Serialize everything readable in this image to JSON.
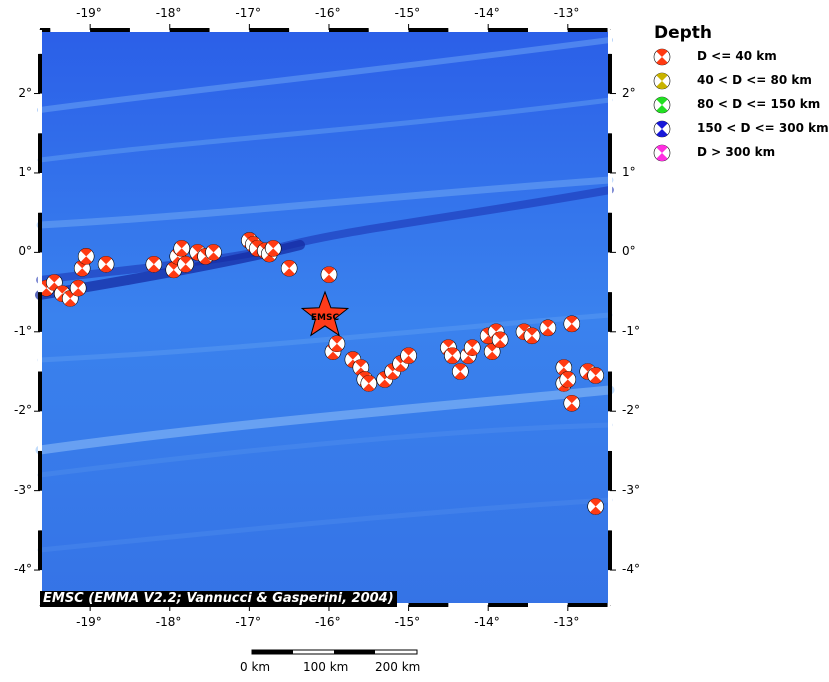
{
  "map": {
    "lon_ticks": [
      "-19°",
      "-18°",
      "-17°",
      "-16°",
      "-15°",
      "-14°",
      "-13°"
    ],
    "lon_values": [
      -19,
      -18,
      -17,
      -16,
      -15,
      -14,
      -13
    ],
    "lat_ticks": [
      "2°",
      "1°",
      "0°",
      "-1°",
      "-2°",
      "-3°",
      "-4°"
    ],
    "lat_values": [
      2,
      1,
      0,
      -1,
      -2,
      -3,
      -4
    ],
    "extent": {
      "lon": [
        -19.63,
        -12.47
      ],
      "lat": [
        -4.44,
        2.8
      ]
    },
    "epicenter": {
      "label": "EMSC",
      "lon": -16.05,
      "lat": -0.8,
      "color": "#ff3b1a"
    },
    "events_shallow": [
      [
        -19.55,
        -0.45
      ],
      [
        -19.45,
        -0.38
      ],
      [
        -19.35,
        -0.52
      ],
      [
        -19.25,
        -0.58
      ],
      [
        -19.15,
        -0.45
      ],
      [
        -19.1,
        -0.2
      ],
      [
        -19.05,
        -0.05
      ],
      [
        -18.8,
        -0.15
      ],
      [
        -18.2,
        -0.15
      ],
      [
        -17.95,
        -0.22
      ],
      [
        -17.9,
        -0.05
      ],
      [
        -17.85,
        0.05
      ],
      [
        -17.8,
        -0.15
      ],
      [
        -17.65,
        0.0
      ],
      [
        -17.55,
        -0.05
      ],
      [
        -17.45,
        0.0
      ],
      [
        -17.0,
        0.15
      ],
      [
        -16.95,
        0.1
      ],
      [
        -16.9,
        0.05
      ],
      [
        -16.8,
        0.02
      ],
      [
        -16.75,
        -0.02
      ],
      [
        -16.7,
        0.05
      ],
      [
        -16.5,
        -0.2
      ],
      [
        -16.0,
        -0.28
      ],
      [
        -15.95,
        -1.25
      ],
      [
        -15.9,
        -1.15
      ],
      [
        -15.7,
        -1.35
      ],
      [
        -15.6,
        -1.45
      ],
      [
        -15.55,
        -1.6
      ],
      [
        -15.5,
        -1.65
      ],
      [
        -15.3,
        -1.6
      ],
      [
        -15.2,
        -1.5
      ],
      [
        -15.1,
        -1.4
      ],
      [
        -15.0,
        -1.3
      ],
      [
        -14.5,
        -1.2
      ],
      [
        -14.45,
        -1.3
      ],
      [
        -14.35,
        -1.5
      ],
      [
        -14.25,
        -1.3
      ],
      [
        -14.2,
        -1.2
      ],
      [
        -14.0,
        -1.05
      ],
      [
        -13.95,
        -1.25
      ],
      [
        -13.9,
        -1.0
      ],
      [
        -13.85,
        -1.1
      ],
      [
        -13.55,
        -1.0
      ],
      [
        -13.45,
        -1.05
      ],
      [
        -13.25,
        -0.95
      ],
      [
        -12.95,
        -0.9
      ],
      [
        -13.05,
        -1.45
      ],
      [
        -13.05,
        -1.65
      ],
      [
        -13.0,
        -1.6
      ],
      [
        -12.95,
        -1.9
      ],
      [
        -12.75,
        -1.5
      ],
      [
        -12.65,
        -1.55
      ],
      [
        -12.65,
        -3.2
      ]
    ]
  },
  "credit": "EMSC (EMMA V2.2; Vannucci & Gasperini, 2004)",
  "legend": {
    "title": "Depth",
    "items": [
      {
        "label": "D <= 40 km",
        "color": "#ff3a12"
      },
      {
        "label": "40 < D <= 80 km",
        "color": "#c9b300"
      },
      {
        "label": "80 < D <= 150 km",
        "color": "#22e022"
      },
      {
        "label": "150 < D <= 300 km",
        "color": "#1818d8"
      },
      {
        "label": "D > 300 km",
        "color": "#ff2ee0"
      }
    ]
  },
  "scale_bar": {
    "labels": [
      "0 km",
      "100 km",
      "200 km"
    ]
  }
}
